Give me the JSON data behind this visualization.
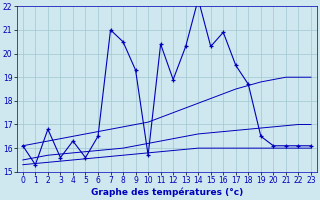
{
  "title": "Graphe des températures (°c)",
  "background_color": "#cfe8ef",
  "plot_bg_color": "#cfe8ef",
  "line_color": "#0000bb",
  "x_values": [
    0,
    1,
    2,
    3,
    4,
    5,
    6,
    7,
    8,
    9,
    10,
    11,
    12,
    13,
    14,
    15,
    16,
    17,
    18,
    19,
    20,
    21,
    22,
    23
  ],
  "main_temps": [
    16.1,
    15.3,
    16.8,
    15.6,
    16.3,
    15.6,
    16.5,
    21.0,
    20.5,
    19.3,
    15.7,
    20.4,
    18.9,
    20.3,
    22.3,
    20.3,
    20.9,
    19.5,
    18.7,
    16.5,
    16.1,
    16.1,
    16.1,
    16.1
  ],
  "trend_line1": [
    15.3,
    15.35,
    15.4,
    15.45,
    15.5,
    15.55,
    15.6,
    15.65,
    15.7,
    15.75,
    15.8,
    15.85,
    15.9,
    15.95,
    16.0,
    16.0,
    16.0,
    16.0,
    16.0,
    16.0,
    16.0,
    16.0,
    16.0,
    16.0
  ],
  "trend_line2": [
    15.5,
    15.6,
    15.7,
    15.75,
    15.8,
    15.85,
    15.9,
    15.95,
    16.0,
    16.1,
    16.2,
    16.3,
    16.4,
    16.5,
    16.6,
    16.65,
    16.7,
    16.75,
    16.8,
    16.85,
    16.9,
    16.95,
    17.0,
    17.0
  ],
  "trend_line3": [
    16.1,
    16.2,
    16.3,
    16.4,
    16.5,
    16.6,
    16.7,
    16.8,
    16.9,
    17.0,
    17.1,
    17.3,
    17.5,
    17.7,
    17.9,
    18.1,
    18.3,
    18.5,
    18.65,
    18.8,
    18.9,
    19.0,
    19.0,
    19.0
  ],
  "ylim": [
    15,
    22
  ],
  "xlim": [
    -0.5,
    23.5
  ],
  "yticks": [
    15,
    16,
    17,
    18,
    19,
    20,
    21,
    22
  ],
  "xticks": [
    0,
    1,
    2,
    3,
    4,
    5,
    6,
    7,
    8,
    9,
    10,
    11,
    12,
    13,
    14,
    15,
    16,
    17,
    18,
    19,
    20,
    21,
    22,
    23
  ],
  "grid_color": "#a0c8d0",
  "tick_fontsize": 5.5,
  "xlabel_fontsize": 6.5
}
